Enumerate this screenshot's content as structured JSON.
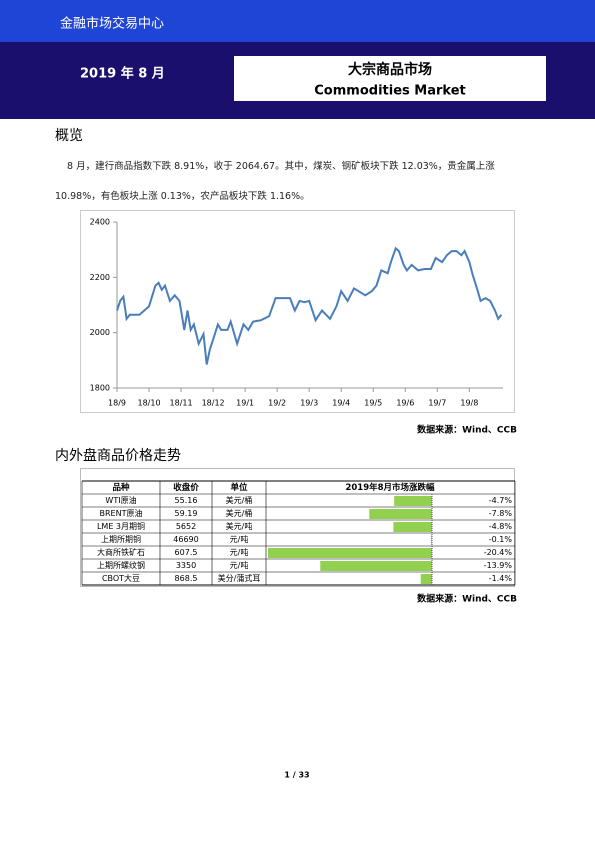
{
  "header": {
    "org": "金融市场交易中心",
    "date": "2019 年 8 月",
    "title_cn": "大宗商品市场",
    "title_en": "Commodities Market"
  },
  "section1": {
    "heading": "概览",
    "paragraph": "8 月，建行商品指数下跌 8.91%，收于 2064.67。其中，煤炭、钢矿板块下跌 12.03%，贵金属上涨 10.98%，有色板块上涨 0.13%，农产品板块下跌 1.16%。"
  },
  "chart_data": {
    "type": "line",
    "x": [
      0,
      0.1,
      0.2,
      0.3,
      0.4,
      0.7,
      1.0,
      1.2,
      1.3,
      1.4,
      1.5,
      1.65,
      1.8,
      1.95,
      2.1,
      2.2,
      2.3,
      2.4,
      2.55,
      2.7,
      2.8,
      2.9,
      3.0,
      3.15,
      3.25,
      3.45,
      3.55,
      3.75,
      3.95,
      4.1,
      4.25,
      4.5,
      4.75,
      4.95,
      5.4,
      5.55,
      5.7,
      5.85,
      6.0,
      6.2,
      6.4,
      6.65,
      6.85,
      7.0,
      7.2,
      7.4,
      7.75,
      7.95,
      8.1,
      8.25,
      8.45,
      8.55,
      8.7,
      8.8,
      8.95,
      9.05,
      9.2,
      9.4,
      9.6,
      9.8,
      9.95,
      10.15,
      10.3,
      10.45,
      10.6,
      10.75,
      10.85,
      11.0,
      11.1,
      11.25,
      11.35,
      11.5,
      11.65,
      11.8,
      11.9,
      12.0
    ],
    "series": [
      {
        "color": "#4a7ebb",
        "values": [
          2080,
          2115,
          2130,
          2050,
          2065,
          2065,
          2095,
          2170,
          2180,
          2155,
          2170,
          2115,
          2135,
          2115,
          2010,
          2080,
          2010,
          2030,
          1960,
          1995,
          1885,
          1940,
          1975,
          2030,
          2010,
          2010,
          2040,
          1960,
          2030,
          2010,
          2040,
          2045,
          2060,
          2125,
          2125,
          2080,
          2115,
          2110,
          2115,
          2045,
          2080,
          2050,
          2095,
          2150,
          2115,
          2160,
          2135,
          2150,
          2170,
          2225,
          2215,
          2255,
          2305,
          2295,
          2245,
          2225,
          2245,
          2225,
          2230,
          2230,
          2270,
          2255,
          2280,
          2295,
          2295,
          2280,
          2295,
          2255,
          2210,
          2155,
          2115,
          2125,
          2115,
          2080,
          2050,
          2065
        ]
      }
    ],
    "xlim": [
      0,
      12.05
    ],
    "xticks": [
      {
        "value": 0,
        "label": "18/9"
      },
      {
        "value": 1,
        "label": "18/10"
      },
      {
        "value": 2,
        "label": "18/11"
      },
      {
        "value": 3,
        "label": "18/12"
      },
      {
        "value": 4,
        "label": "19/1"
      },
      {
        "value": 5,
        "label": "19/2"
      },
      {
        "value": 6,
        "label": "19/3"
      },
      {
        "value": 7,
        "label": "19/4"
      },
      {
        "value": 8,
        "label": "19/5"
      },
      {
        "value": 9,
        "label": "19/6"
      },
      {
        "value": 10,
        "label": "19/7"
      },
      {
        "value": 11,
        "label": "19/8"
      }
    ],
    "ylim": [
      1800,
      2400
    ],
    "yticks": [
      1800,
      2000,
      2200,
      2400
    ],
    "grid": false
  },
  "source1": "数据来源：Wind、CCB",
  "section2": {
    "heading": "内外盘商品价格走势"
  },
  "table": {
    "header": [
      "品种",
      "收盘价",
      "单位",
      "2019年8月市场涨跌幅"
    ],
    "bar_color": "#92d050",
    "change_min": -20.4,
    "rows": [
      {
        "name": "WTI原油",
        "price": "55.16",
        "unit": "美元/桶",
        "change": -4.7,
        "change_label": "-4.7%"
      },
      {
        "name": "BRENT原油",
        "price": "59.19",
        "unit": "美元/桶",
        "change": -7.8,
        "change_label": "-7.8%"
      },
      {
        "name": "LME 3月期铜",
        "price": "5652",
        "unit": "美元/吨",
        "change": -4.8,
        "change_label": "-4.8%"
      },
      {
        "name": "上期所期铜",
        "price": "46690",
        "unit": "元/吨",
        "change": -0.1,
        "change_label": "-0.1%"
      },
      {
        "name": "大商所铁矿石",
        "price": "607.5",
        "unit": "元/吨",
        "change": -20.4,
        "change_label": "-20.4%"
      },
      {
        "name": "上期所螺纹钢",
        "price": "3350",
        "unit": "元/吨",
        "change": -13.9,
        "change_label": "-13.9%"
      },
      {
        "name": "CBOT大豆",
        "price": "868.5",
        "unit": "美分/蒲式耳",
        "change": -1.4,
        "change_label": "-1.4%"
      }
    ]
  },
  "source2": "数据来源：Wind、CCB",
  "page_number": "1 / 33"
}
